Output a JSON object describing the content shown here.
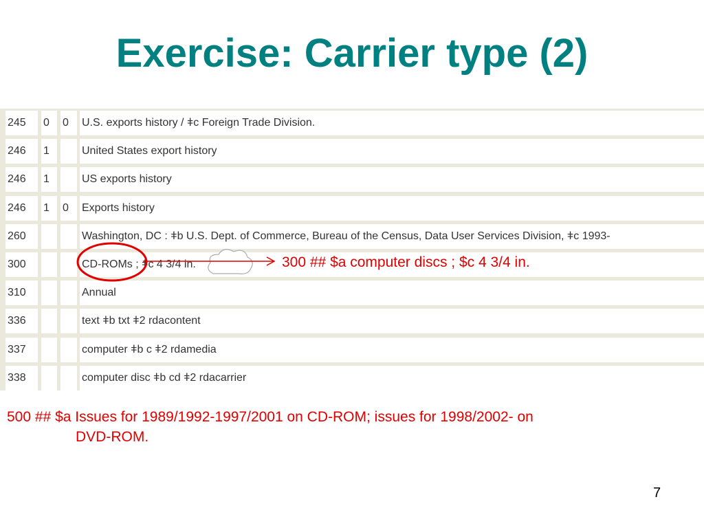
{
  "slide": {
    "title": "Exercise: Carrier type (2)",
    "page_number": "7",
    "annotation_300": "300 ## $a computer discs ; $c 4 3/4  in.",
    "note_500_line1": "500 ## $a Issues for 1989/1992-1997/2001 on CD-ROM; issues for 1998/2002- on",
    "note_500_line2": "DVD-ROM.",
    "title_color": "#008080",
    "annotation_color": "#e00000"
  },
  "record": {
    "rows": [
      {
        "tag": "245",
        "ind1": "0",
        "ind2": "0",
        "data": "U.S. exports history / ǂc Foreign Trade Division."
      },
      {
        "tag": "246",
        "ind1": "1",
        "ind2": "",
        "data": "United States export history"
      },
      {
        "tag": "246",
        "ind1": "1",
        "ind2": "",
        "data": "US exports history"
      },
      {
        "tag": "246",
        "ind1": "1",
        "ind2": "0",
        "data": "Exports history"
      },
      {
        "tag": "260",
        "ind1": "",
        "ind2": "",
        "data": "Washington, DC : ǂb U.S. Dept. of Commerce, Bureau of the Census, Data User Services Division, ǂc 1993-"
      },
      {
        "tag": "300",
        "ind1": "",
        "ind2": "",
        "data": "CD-ROMs ; ǂc 4 3/4 in."
      },
      {
        "tag": "310",
        "ind1": "",
        "ind2": "",
        "data": "Annual"
      },
      {
        "tag": "336",
        "ind1": "",
        "ind2": "",
        "data": "text ǂb txt ǂ2 rdacontent"
      },
      {
        "tag": "337",
        "ind1": "",
        "ind2": "",
        "data": "computer ǂb c ǂ2 rdamedia"
      },
      {
        "tag": "338",
        "ind1": "",
        "ind2": "",
        "data": "computer disc ǂb cd ǂ2 rdacarrier"
      }
    ]
  }
}
